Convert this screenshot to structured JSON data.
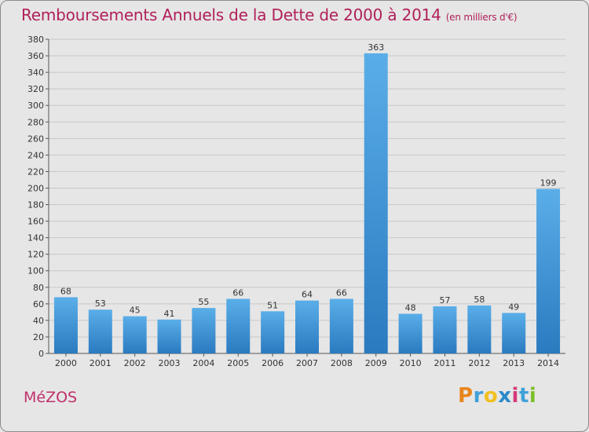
{
  "header": {
    "title": "Remboursements Annuels de la Dette de 2000 à 2014",
    "unit": "(en milliers d'€)"
  },
  "footer": {
    "place": "MéZOS",
    "logo": "Proxiti"
  },
  "colors": {
    "bar_top": "#5aaee8",
    "bar_bottom": "#2a7ac0",
    "title": "#b0205a",
    "grid": "#c8c8c8",
    "logo_letters": [
      "#e8861a",
      "#3fa2d8",
      "#f0c020",
      "#2a8acb",
      "#d43a7a",
      "#3fa2d8",
      "#7bbf2a"
    ]
  },
  "chart_data": {
    "type": "bar",
    "title": "Remboursements Annuels de la Dette de 2000 à 2014",
    "xlabel": "",
    "ylabel": "",
    "categories": [
      "2000",
      "2001",
      "2002",
      "2003",
      "2004",
      "2005",
      "2006",
      "2007",
      "2008",
      "2009",
      "2010",
      "2011",
      "2012",
      "2013",
      "2014"
    ],
    "values": [
      68,
      53,
      45,
      41,
      55,
      66,
      51,
      64,
      66,
      363,
      48,
      57,
      58,
      49,
      199
    ],
    "ylim": [
      0,
      380
    ],
    "yticks": [
      0,
      20,
      40,
      60,
      80,
      100,
      120,
      140,
      160,
      180,
      200,
      220,
      240,
      260,
      280,
      300,
      320,
      340,
      360,
      380
    ],
    "grid": true,
    "legend": "none"
  }
}
